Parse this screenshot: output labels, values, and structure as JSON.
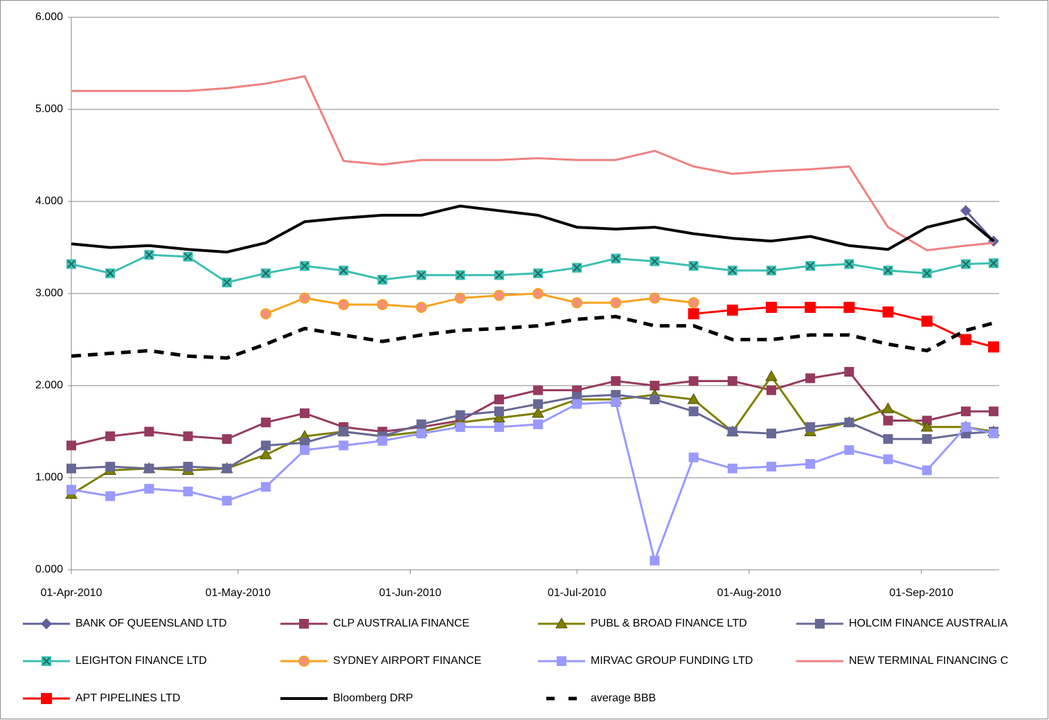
{
  "chart_data": {
    "type": "line",
    "x": [
      "2010-04-01",
      "2010-04-08",
      "2010-04-15",
      "2010-04-22",
      "2010-04-29",
      "2010-05-06",
      "2010-05-13",
      "2010-05-20",
      "2010-05-27",
      "2010-06-03",
      "2010-06-10",
      "2010-06-17",
      "2010-06-24",
      "2010-07-01",
      "2010-07-08",
      "2010-07-15",
      "2010-07-22",
      "2010-07-29",
      "2010-08-05",
      "2010-08-12",
      "2010-08-19",
      "2010-08-26",
      "2010-09-02",
      "2010-09-09",
      "2010-09-14"
    ],
    "xlim": [
      "2010-04-01",
      "2010-09-15"
    ],
    "xticks": [
      {
        "value": "2010-04-01",
        "label": "01-Apr-2010"
      },
      {
        "value": "2010-05-01",
        "label": "01-May-2010"
      },
      {
        "value": "2010-06-01",
        "label": "01-Jun-2010"
      },
      {
        "value": "2010-07-01",
        "label": "01-Jul-2010"
      },
      {
        "value": "2010-08-01",
        "label": "01-Aug-2010"
      },
      {
        "value": "2010-09-01",
        "label": "01-Sep-2010"
      }
    ],
    "ylim": [
      0,
      6
    ],
    "yticks": [
      {
        "value": 0,
        "label": "0.000"
      },
      {
        "value": 1,
        "label": "1.000"
      },
      {
        "value": 2,
        "label": "2.000"
      },
      {
        "value": 3,
        "label": "3.000"
      },
      {
        "value": 4,
        "label": "4.000"
      },
      {
        "value": 5,
        "label": "5.000"
      },
      {
        "value": 6,
        "label": "6.000"
      }
    ],
    "grid": true,
    "legend": "bottom",
    "series": [
      {
        "name": "BANK OF QUEENSLAND LTD",
        "color": "#60609c",
        "marker": "diamond",
        "values": [
          null,
          null,
          null,
          null,
          null,
          null,
          null,
          null,
          null,
          null,
          null,
          null,
          null,
          null,
          null,
          null,
          null,
          null,
          null,
          null,
          null,
          null,
          null,
          3.9,
          3.57
        ]
      },
      {
        "name": "CLP AUSTRALIA FINANCE",
        "color": "#953a5e",
        "marker": "square",
        "values": [
          1.35,
          1.45,
          1.5,
          1.45,
          1.42,
          1.6,
          1.7,
          1.55,
          1.5,
          1.55,
          1.62,
          1.85,
          1.95,
          1.95,
          2.05,
          2.0,
          2.05,
          2.05,
          1.95,
          2.08,
          2.15,
          1.62,
          1.62,
          1.72,
          1.72
        ]
      },
      {
        "name": "PUBL & BROAD FINANCE LTD",
        "color": "#7f7f00",
        "marker": "triangle",
        "values": [
          0.82,
          1.08,
          1.1,
          1.08,
          1.1,
          1.25,
          1.45,
          1.5,
          1.45,
          1.5,
          1.6,
          1.65,
          1.7,
          1.85,
          1.85,
          1.9,
          1.85,
          1.5,
          2.1,
          1.5,
          1.6,
          1.75,
          1.55,
          1.55,
          1.5
        ]
      },
      {
        "name": "HOLCIM FINANCE AUSTRALIA",
        "color": "#686896",
        "marker": "square",
        "values": [
          1.1,
          1.12,
          1.1,
          1.12,
          1.1,
          1.35,
          1.38,
          1.5,
          1.45,
          1.58,
          1.68,
          1.72,
          1.8,
          1.88,
          1.9,
          1.85,
          1.72,
          1.5,
          1.48,
          1.55,
          1.6,
          1.42,
          1.42,
          1.48,
          1.5
        ]
      },
      {
        "name": "LEIGHTON FINANCE LTD",
        "color": "#3cbfb2",
        "marker": "xsquare",
        "values": [
          3.32,
          3.22,
          3.42,
          3.4,
          3.12,
          3.22,
          3.3,
          3.25,
          3.15,
          3.2,
          3.2,
          3.2,
          3.22,
          3.28,
          3.38,
          3.35,
          3.3,
          3.25,
          3.25,
          3.3,
          3.32,
          3.25,
          3.22,
          3.32,
          3.33
        ]
      },
      {
        "name": "SYDNEY AIRPORT FINANCE",
        "color": "#f7a21c",
        "marker": "circle",
        "marker_color": "#f4907a",
        "values": [
          null,
          null,
          null,
          null,
          null,
          2.78,
          2.95,
          2.88,
          2.88,
          2.85,
          2.95,
          2.98,
          3.0,
          2.9,
          2.9,
          2.95,
          2.9,
          null,
          null,
          null,
          null,
          null,
          null,
          null,
          null
        ]
      },
      {
        "name": "MIRVAC GROUP FUNDING LTD",
        "color": "#9999ff",
        "marker": "square",
        "values": [
          0.87,
          0.8,
          0.88,
          0.85,
          0.75,
          0.9,
          1.3,
          1.35,
          1.4,
          1.48,
          1.55,
          1.55,
          1.58,
          1.8,
          1.82,
          0.1,
          1.22,
          1.1,
          1.12,
          1.15,
          1.3,
          1.2,
          1.08,
          1.55,
          1.48
        ]
      },
      {
        "name": "NEW TERMINAL FINANCING C",
        "color": "#f08080",
        "marker": "none",
        "values": [
          5.2,
          5.2,
          5.2,
          5.2,
          5.23,
          5.28,
          5.36,
          4.44,
          4.4,
          4.45,
          4.45,
          4.45,
          4.47,
          4.45,
          4.45,
          4.55,
          4.38,
          4.3,
          4.33,
          4.35,
          4.38,
          3.72,
          3.47,
          3.52,
          3.55
        ]
      },
      {
        "name": "APT PIPELINES LTD",
        "color": "#ff0000",
        "marker": "bigsquare",
        "values": [
          null,
          null,
          null,
          null,
          null,
          null,
          null,
          null,
          null,
          null,
          null,
          null,
          null,
          null,
          null,
          null,
          2.78,
          2.82,
          2.85,
          2.85,
          2.85,
          2.8,
          2.7,
          2.5,
          2.42
        ]
      },
      {
        "name": "Bloomberg DRP",
        "color": "#000000",
        "marker": "none",
        "values": [
          3.54,
          3.5,
          3.52,
          3.48,
          3.45,
          3.55,
          3.78,
          3.82,
          3.85,
          3.85,
          3.95,
          3.9,
          3.85,
          3.72,
          3.7,
          3.72,
          3.65,
          3.6,
          3.57,
          3.62,
          3.52,
          3.48,
          3.72,
          3.82,
          3.57
        ]
      },
      {
        "name": "average BBB",
        "color": "#000000",
        "marker": "none",
        "dashed": true,
        "values": [
          2.32,
          2.35,
          2.38,
          2.32,
          2.3,
          2.45,
          2.62,
          2.55,
          2.48,
          2.55,
          2.6,
          2.62,
          2.65,
          2.72,
          2.75,
          2.65,
          2.65,
          2.5,
          2.5,
          2.55,
          2.55,
          2.45,
          2.38,
          2.6,
          2.68
        ]
      }
    ]
  }
}
